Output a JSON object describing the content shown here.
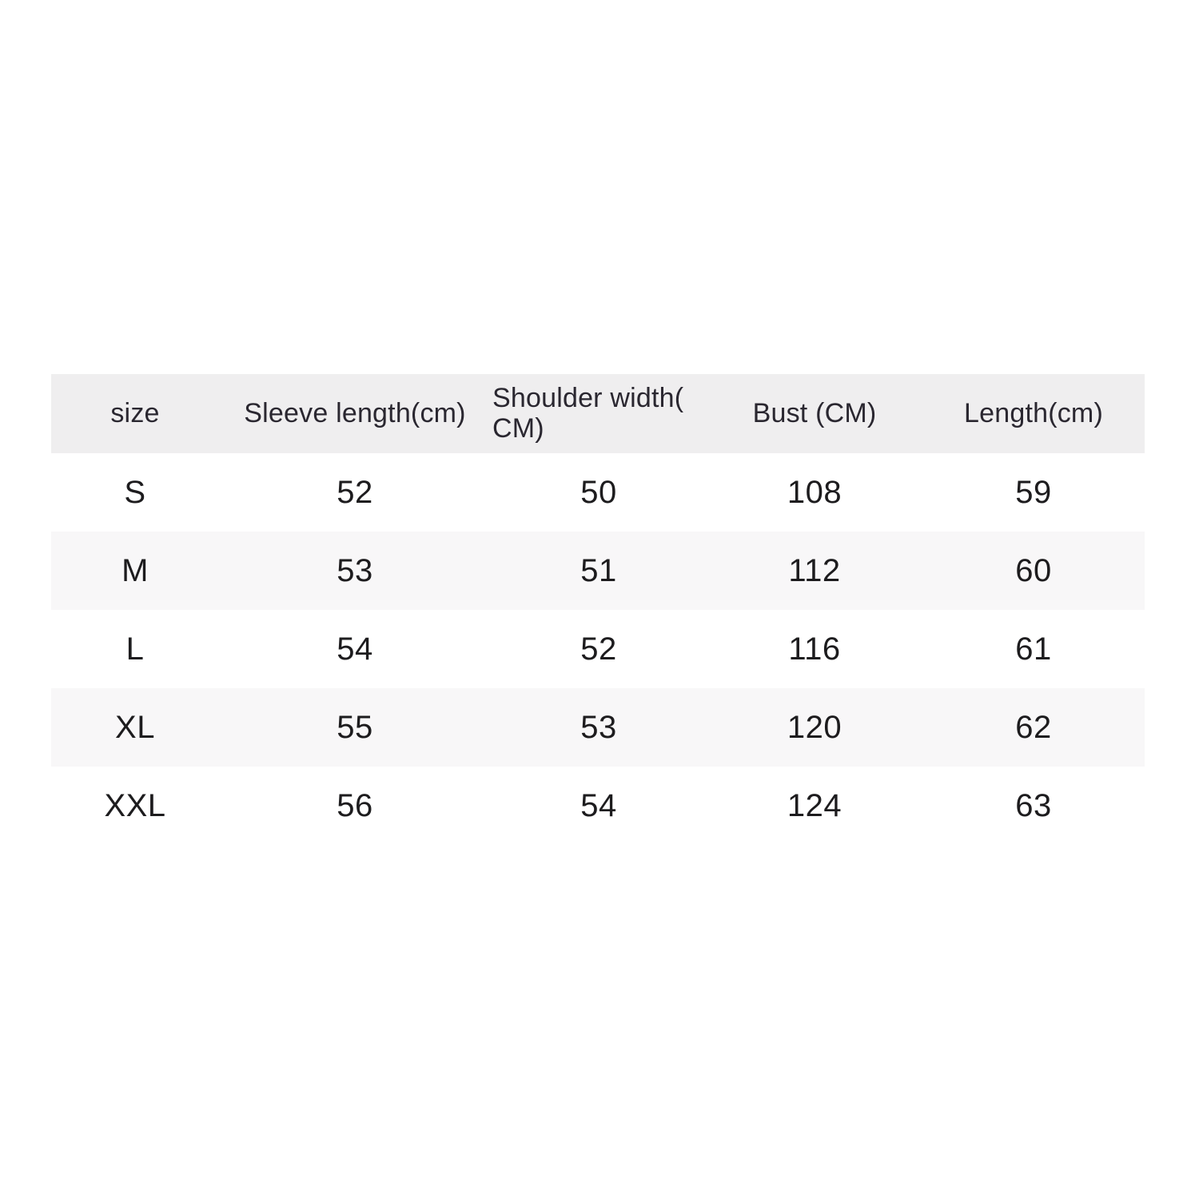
{
  "canvas": {
    "background": "#ffffff"
  },
  "styles": {
    "header_bg": "#efeeef",
    "stripe_bg": "#f8f7f8",
    "row_bg": "#ffffff",
    "header_text": "#2a2730",
    "cell_text": "#1d1c1e"
  },
  "chart_data": {
    "type": "table",
    "title": "",
    "columns": [
      "size",
      "Sleeve length(cm)",
      "Shoulder width( CM)",
      "Bust (CM)",
      "Length(cm)"
    ],
    "rows": [
      [
        "S",
        "52",
        "50",
        "108",
        "59"
      ],
      [
        "M",
        "53",
        "51",
        "112",
        "60"
      ],
      [
        "L",
        "54",
        "52",
        "116",
        "61"
      ],
      [
        "XL",
        "55",
        "53",
        "120",
        "62"
      ],
      [
        "XXL",
        "56",
        "54",
        "124",
        "63"
      ]
    ],
    "layout": {
      "grid": false,
      "header_row_shaded": true,
      "zebra_striping": "rows M and XL shaded light gray"
    }
  }
}
